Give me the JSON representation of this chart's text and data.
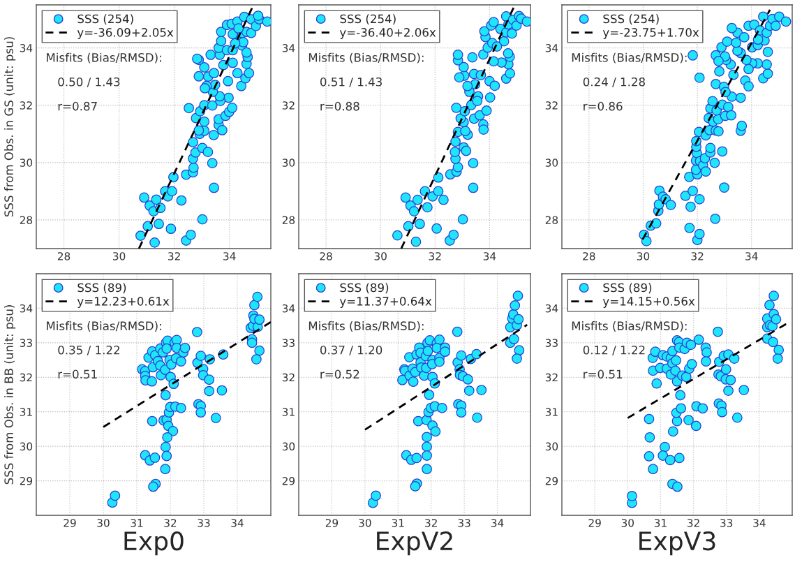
{
  "chart_data": [
    {
      "type": "scatter",
      "ylabel": "SSS from Obs. in GS (unit: psu)",
      "xlim": [
        27,
        35.5
      ],
      "ylim": [
        27,
        35.5
      ],
      "xticks": [
        28,
        30,
        32,
        34
      ],
      "yticks": [
        28,
        30,
        32,
        34
      ],
      "grid": true,
      "legend": "top left",
      "marker": "circle",
      "annotations": [
        "Misfits (Bias/RMSD):",
        "0.50 / 1.43",
        "r=0.87"
      ],
      "series": [
        {
          "name": "SSS (254)",
          "type": "scatter",
          "color": "#1ee6f8",
          "x": [
            30.78,
            31.29,
            31.04,
            31.44,
            31.88,
            30.91,
            31.11,
            31.25,
            31.35,
            31.5,
            31.67,
            31.77,
            31.92,
            31.97,
            32.26,
            32.43,
            32.6,
            33.02,
            33.44,
            33.38,
            32.43,
            32.68,
            32.7,
            32.68,
            32.77,
            32.68,
            33.02,
            33.22,
            33.43,
            32.92,
            33.09,
            32.89,
            33.09,
            32.79,
            32.94,
            32.53,
            33.09,
            33.38,
            33.61,
            33.74,
            33.61,
            33.86,
            33.99,
            34.1,
            33.97,
            33.67,
            33.65,
            33.4,
            33.48,
            33.17,
            33.11,
            32.89,
            33.09,
            33.23,
            33.44,
            32.89,
            32.83,
            33.32,
            33.95,
            34.43,
            34.58,
            34.71,
            34.62,
            34.66,
            34.29,
            34.12,
            33.78,
            33.65,
            33.61,
            33.7,
            33.91,
            34.12,
            34.46,
            34.62,
            34.29,
            33.7,
            33.91,
            34.12,
            34.46,
            34.62,
            34.79,
            34.08,
            34.29,
            34.54,
            34.79,
            34.96,
            35.08,
            35.04,
            35.37,
            34.33,
            34.5,
            34.21
          ],
          "values": [
            27.45,
            27.21,
            27.78,
            27.86,
            27.69,
            28.78,
            28.5,
            28.3,
            28.71,
            28.42,
            29.0,
            28.82,
            29.0,
            29.49,
            28.68,
            27.28,
            27.48,
            28.02,
            29.12,
            29.98,
            29.58,
            29.66,
            29.82,
            30.14,
            30.35,
            30.71,
            30.51,
            30.37,
            30.96,
            31.0,
            31.11,
            31.12,
            31.43,
            31.55,
            31.79,
            31.9,
            32.0,
            31.99,
            31.31,
            31.13,
            31.51,
            31.63,
            31.77,
            31.91,
            32.26,
            32.15,
            32.31,
            32.47,
            32.71,
            32.67,
            32.59,
            33.01,
            33.32,
            33.0,
            33.12,
            33.58,
            33.62,
            33.76,
            32.84,
            32.67,
            32.94,
            33.12,
            33.44,
            33.68,
            33.12,
            33.48,
            33.4,
            33.76,
            34.0,
            34.24,
            33.92,
            33.92,
            34.08,
            33.84,
            34.28,
            34.56,
            34.8,
            34.48,
            34.52,
            34.56,
            34.52,
            34.84,
            34.92,
            35.08,
            35.0,
            34.76,
            35.0,
            35.12,
            34.92,
            34.68,
            34.2,
            34.16
          ]
        },
        {
          "name": "y=-36.09+2.05x",
          "type": "line",
          "marker": "none",
          "color": "#000000",
          "line_style": "dashed",
          "x": [
            30.72,
            34.82
          ],
          "values": [
            27.0,
            35.39
          ]
        }
      ]
    },
    {
      "type": "scatter",
      "xlim": [
        27,
        35.5
      ],
      "ylim": [
        27,
        35.5
      ],
      "xticks": [
        28,
        30,
        32,
        34
      ],
      "yticks": [
        28,
        30,
        32,
        34
      ],
      "grid": true,
      "legend": "top left",
      "marker": "circle",
      "annotations": [
        "Misfits (Bias/RMSD):",
        "0.51 / 1.43",
        "r=0.88"
      ],
      "series": [
        {
          "name": "SSS (254)",
          "type": "scatter",
          "color": "#1ee6f8",
          "x": [
            30.62,
            31.3,
            31.02,
            31.44,
            32.06,
            30.92,
            31.1,
            31.23,
            31.36,
            31.72,
            31.63,
            31.91,
            32.12,
            32.12,
            32.31,
            32.54,
            32.68,
            33.02,
            33.4,
            33.4,
            32.56,
            32.79,
            32.84,
            32.75,
            32.73,
            32.75,
            33.05,
            33.14,
            33.2,
            32.84,
            33.11,
            33.05,
            32.94,
            33.09,
            32.78,
            33.33,
            33.43,
            33.64,
            33.77,
            33.78,
            33.89,
            34.02,
            33.58,
            33.55,
            33.47,
            33.26,
            33.19,
            33.07,
            32.89,
            33.05,
            32.84,
            32.84,
            33.37,
            33.43,
            33.68,
            34.0,
            34.19,
            34.61,
            34.75,
            34.69,
            34.74,
            34.44,
            34.15,
            33.77,
            33.93,
            34.1,
            34.53,
            34.68,
            33.85,
            33.81,
            34.06,
            34.15,
            34.4,
            34.61,
            34.82,
            34.69,
            34.61,
            34.86,
            34.99,
            35.08,
            35.16,
            35.37,
            34.27
          ],
          "values": [
            27.46,
            27.24,
            27.78,
            27.86,
            27.7,
            28.78,
            28.5,
            28.3,
            28.7,
            28.44,
            29.0,
            28.82,
            29.0,
            29.48,
            28.7,
            27.28,
            27.48,
            28.02,
            29.12,
            29.98,
            29.59,
            29.68,
            29.84,
            30.13,
            30.37,
            30.73,
            30.53,
            30.41,
            30.97,
            31.07,
            31.1,
            31.41,
            31.54,
            31.79,
            31.91,
            32.01,
            31.53,
            31.65,
            31.33,
            31.15,
            31.81,
            32.27,
            32.31,
            32.15,
            32.73,
            32.47,
            32.67,
            33.03,
            32.97,
            33.33,
            33.57,
            33.76,
            33.67,
            33.09,
            33.05,
            32.84,
            32.68,
            32.93,
            33.11,
            33.43,
            33.69,
            33.49,
            33.53,
            33.77,
            34.01,
            34.17,
            34.23,
            33.81,
            34.38,
            34.58,
            34.78,
            34.9,
            34.66,
            34.54,
            34.5,
            34.82,
            35.1,
            34.98,
            34.78,
            35.11,
            35.02,
            34.92,
            34.05
          ]
        },
        {
          "name": "y=-36.40+2.06x",
          "type": "line",
          "marker": "none",
          "color": "#000000",
          "line_style": "dashed",
          "x": [
            30.76,
            34.88
          ],
          "values": [
            27.0,
            35.4
          ]
        }
      ]
    },
    {
      "type": "scatter",
      "xlim": [
        27,
        35.5
      ],
      "ylim": [
        27,
        35.5
      ],
      "xticks": [
        28,
        30,
        32,
        34
      ],
      "yticks": [
        28,
        30,
        32,
        34
      ],
      "grid": true,
      "legend": "top left",
      "marker": "circle",
      "annotations": [
        "Misfits (Bias/RMSD):",
        "0.24 / 1.28",
        "r=0.86"
      ],
      "series": [
        {
          "name": "SSS (254)",
          "type": "scatter",
          "color": "#1ee6f8",
          "x": [
            30.03,
            30.12,
            30.28,
            30.48,
            30.56,
            30.58,
            30.6,
            30.73,
            30.83,
            31.02,
            31.56,
            31.7,
            31.75,
            31.71,
            31.83,
            32.08,
            32.0,
            32.08,
            32.66,
            32.99,
            32.0,
            31.95,
            31.95,
            31.98,
            31.96,
            31.96,
            32.1,
            32.21,
            32.31,
            32.28,
            32.48,
            32.48,
            32.64,
            32.92,
            32.06,
            32.31,
            32.45,
            32.68,
            32.78,
            32.42,
            32.58,
            32.77,
            32.48,
            32.56,
            32.71,
            32.92,
            33.03,
            33.14,
            33.25,
            33.27,
            33.6,
            33.6,
            33.64,
            32.68,
            32.98,
            33.04,
            33.33,
            33.77,
            33.89,
            34.43,
            34.6,
            34.56,
            34.23,
            34.02,
            33.89,
            33.81,
            33.6,
            33.48,
            33.23,
            33.06,
            33.02,
            32.68,
            32.78,
            32.81,
            32.89,
            33.1,
            31.83,
            32.08,
            33.43,
            33.48,
            33.27,
            33.73,
            34.02,
            34.23,
            34.48,
            34.6,
            33.89,
            34.1,
            34.31,
            34.56,
            34.68,
            34.43,
            34.77,
            34.89,
            35.02,
            35.27,
            34.24
          ],
          "values": [
            27.48,
            27.26,
            27.8,
            27.88,
            28.32,
            28.54,
            29.02,
            28.81,
            28.72,
            28.52,
            28.84,
            29.5,
            28.46,
            27.72,
            29.01,
            28.72,
            27.3,
            27.51,
            28.04,
            29.13,
            29.59,
            29.75,
            30.07,
            30.33,
            30.55,
            30.75,
            30.05,
            29.9,
            29.69,
            30.15,
            30.35,
            30.51,
            29.99,
            30.39,
            31.07,
            30.95,
            31.13,
            31.12,
            31.09,
            31.55,
            31.43,
            31.51,
            31.89,
            32.14,
            31.82,
            32.02,
            31.63,
            31.94,
            31.65,
            32.3,
            32.26,
            31.11,
            31.28,
            32.74,
            32.64,
            32.46,
            33.06,
            32.86,
            32.66,
            32.94,
            33.1,
            33.42,
            33.46,
            33.46,
            33.26,
            33.58,
            33.82,
            33.9,
            33.42,
            33.58,
            33.7,
            33.74,
            33.54,
            33.18,
            34.02,
            34.22,
            33.74,
            32.96,
            34.18,
            34.53,
            34.69,
            34.37,
            34.02,
            34.1,
            34.26,
            33.86,
            34.77,
            34.81,
            34.61,
            34.53,
            34.77,
            35.09,
            35.01,
            34.77,
            35.09,
            34.92,
            34.29
          ]
        },
        {
          "name": "y=-23.75+1.70x",
          "type": "line",
          "marker": "none",
          "color": "#000000",
          "line_style": "dashed",
          "x": [
            29.98,
            34.68
          ],
          "values": [
            27.32,
            35.33
          ]
        }
      ]
    },
    {
      "type": "scatter",
      "xlabel": "Exp0",
      "ylabel": "SSS from Obs. in BB (unit: psu)",
      "xlim": [
        28,
        35
      ],
      "ylim": [
        28,
        35
      ],
      "xticks": [
        29,
        30,
        31,
        32,
        33,
        34
      ],
      "yticks": [
        29,
        30,
        31,
        32,
        33,
        34
      ],
      "grid": true,
      "legend": "top left",
      "marker": "circle",
      "annotations": [
        "Misfits (Bias/RMSD):",
        "0.35 / 1.22",
        "r=0.51"
      ],
      "series": [
        {
          "name": "SSS (89)",
          "type": "scatter",
          "color": "#1ee6f8",
          "x": [
            30.27,
            30.35,
            31.16,
            31.25,
            31.25,
            31.26,
            31.45,
            31.48,
            31.35,
            31.46,
            31.55,
            31.63,
            31.7,
            31.7,
            31.72,
            31.78,
            31.85,
            31.87,
            31.92,
            31.89,
            31.98,
            32.01,
            32.03,
            32.1,
            32.13,
            32.19,
            32.19,
            32.17,
            32.32,
            32.39,
            32.44,
            31.46,
            31.86,
            31.8,
            31.89,
            31.96,
            32.0,
            31.94,
            32.08,
            31.91,
            31.86,
            31.89,
            31.85,
            31.25,
            31.39,
            31.54,
            31.56,
            31.49,
            32.15,
            32.32,
            32.8,
            32.81,
            32.91,
            32.98,
            32.98,
            33.16,
            33.16,
            33.18,
            33.58,
            33.54,
            32.84,
            32.91,
            32.91,
            33.36,
            34.4,
            34.47,
            34.44,
            34.44,
            34.48,
            34.51,
            34.51,
            34.6,
            34.61,
            34.66,
            34.66,
            34.57
          ],
          "values": [
            28.37,
            28.57,
            32.23,
            32.18,
            32.04,
            31.91,
            31.88,
            32.29,
            32.57,
            32.75,
            32.64,
            32.47,
            32.83,
            32.34,
            32.06,
            32.72,
            32.22,
            33.0,
            33.06,
            32.83,
            32.5,
            32.01,
            32.37,
            31.81,
            33.0,
            33.08,
            32.85,
            32.55,
            32.46,
            32.72,
            32.85,
            30.73,
            31.48,
            30.75,
            30.77,
            30.98,
            31.14,
            30.59,
            30.44,
            30.26,
            29.98,
            29.72,
            29.34,
            29.74,
            29.59,
            29.67,
            28.91,
            28.83,
            31.15,
            31.11,
            33.31,
            32.42,
            32.62,
            32.24,
            32.06,
            31.93,
            31.6,
            32.52,
            32.66,
            31.62,
            31.22,
            31.17,
            30.98,
            30.82,
            33.43,
            33.49,
            33.1,
            33.0,
            33.79,
            33.69,
            34.09,
            34.33,
            33.46,
            33.67,
            32.77,
            32.52
          ]
        },
        {
          "name": "y=12.23+0.61x",
          "type": "line",
          "marker": "none",
          "color": "#000000",
          "line_style": "dashed",
          "x": [
            30.0,
            35.0
          ],
          "values": [
            30.56,
            33.6
          ]
        }
      ]
    },
    {
      "type": "scatter",
      "xlabel": "ExpV2",
      "xlim": [
        28,
        35
      ],
      "ylim": [
        28,
        35
      ],
      "xticks": [
        29,
        30,
        31,
        32,
        33,
        34
      ],
      "yticks": [
        29,
        30,
        31,
        32,
        33,
        34
      ],
      "grid": true,
      "legend": "top left",
      "marker": "circle",
      "annotations": [
        "Misfits (Bias/RMSD):",
        "0.37 / 1.20",
        "r=0.52"
      ],
      "series": [
        {
          "name": "SSS (89)",
          "type": "scatter",
          "color": "#1ee6f8",
          "x": [
            30.24,
            30.33,
            31.13,
            31.19,
            31.21,
            31.34,
            31.35,
            31.44,
            31.52,
            31.46,
            31.56,
            31.64,
            31.68,
            31.7,
            31.68,
            31.79,
            31.84,
            31.85,
            31.89,
            31.96,
            31.9,
            32.04,
            32.03,
            32.04,
            32.11,
            32.17,
            32.25,
            32.17,
            32.25,
            32.25,
            32.42,
            32.42,
            31.61,
            31.94,
            31.86,
            31.92,
            31.99,
            32.11,
            32.04,
            32.13,
            31.87,
            31.87,
            31.87,
            31.87,
            31.25,
            31.4,
            31.56,
            31.57,
            31.52,
            32.33,
            32.79,
            32.8,
            32.91,
            32.86,
            32.87,
            32.96,
            33.11,
            33.15,
            33.2,
            33.37,
            33.52,
            32.82,
            32.91,
            32.91,
            33.39,
            34.39,
            34.39,
            34.5,
            34.45,
            34.48,
            34.59,
            34.53,
            34.62,
            34.64,
            34.66,
            34.59
          ],
          "values": [
            28.36,
            28.57,
            31.92,
            32.23,
            32.19,
            32.58,
            32.05,
            32.25,
            32.15,
            31.87,
            32.66,
            32.86,
            32.43,
            32.28,
            32.71,
            32.05,
            32.61,
            32.27,
            33.0,
            33.07,
            32.76,
            32.5,
            32.38,
            32.01,
            31.82,
            32.98,
            33.09,
            32.85,
            32.56,
            32.45,
            32.86,
            32.74,
            30.73,
            31.49,
            30.76,
            30.99,
            31.11,
            31.16,
            30.6,
            30.43,
            30.27,
            29.99,
            29.73,
            29.34,
            29.74,
            29.61,
            29.66,
            28.92,
            28.84,
            31.11,
            33.32,
            32.43,
            32.63,
            32.23,
            32.07,
            32.03,
            31.94,
            31.61,
            32.53,
            32.67,
            31.63,
            31.22,
            31.18,
            30.98,
            30.83,
            33.45,
            33.0,
            33.11,
            33.7,
            33.82,
            33.51,
            34.08,
            34.36,
            33.68,
            32.78,
            32.54
          ]
        },
        {
          "name": "y=11.37+0.64x",
          "type": "line",
          "marker": "none",
          "color": "#000000",
          "line_style": "dashed",
          "x": [
            30.0,
            34.9
          ],
          "values": [
            30.48,
            33.52
          ]
        }
      ]
    },
    {
      "type": "scatter",
      "xlabel": "ExpV3",
      "xlim": [
        28,
        35
      ],
      "ylim": [
        28,
        35
      ],
      "xticks": [
        29,
        30,
        31,
        32,
        33,
        34
      ],
      "yticks": [
        29,
        30,
        31,
        32,
        33,
        34
      ],
      "grid": true,
      "legend": "top left",
      "marker": "circle",
      "annotations": [
        "Misfits (Bias/RMSD):",
        "0.12 / 1.22",
        "r=0.51"
      ],
      "series": [
        {
          "name": "SSS (89)",
          "type": "scatter",
          "color": "#1ee6f8",
          "x": [
            30.13,
            30.13,
            30.65,
            30.67,
            30.65,
            30.77,
            31.13,
            31.07,
            31.29,
            31.57,
            31.36,
            31.51,
            31.38,
            31.5,
            31.48,
            31.62,
            31.6,
            31.5,
            31.85,
            32.08,
            32.09,
            32.28,
            30.88,
            30.77,
            30.76,
            30.84,
            30.99,
            31.07,
            31.19,
            31.19,
            31.31,
            31.31,
            31.36,
            31.36,
            31.45,
            31.47,
            31.5,
            31.56,
            31.57,
            31.66,
            31.78,
            31.73,
            31.8,
            31.87,
            31.92,
            31.95,
            32.16,
            32.37,
            32.4,
            32.38,
            32.74,
            32.78,
            32.76,
            32.83,
            32.92,
            32.99,
            32.98,
            33.06,
            33.13,
            33.06,
            33.24,
            33.53,
            32.77,
            32.85,
            32.87,
            33.33,
            34.24,
            34.24,
            34.24,
            34.31,
            34.33,
            34.4,
            34.44,
            34.44,
            34.42,
            34.51,
            34.59,
            34.56
          ],
          "values": [
            28.36,
            28.56,
            30.79,
            30.26,
            29.71,
            29.34,
            29.98,
            29.73,
            29.6,
            29.66,
            28.91,
            28.83,
            30.43,
            30.73,
            30.97,
            31.1,
            31.48,
            31.88,
            30.76,
            30.59,
            31.16,
            31.1,
            31.82,
            32.19,
            32.56,
            32.74,
            32.27,
            32.64,
            32.6,
            32.25,
            32.08,
            32.56,
            32.76,
            32.4,
            32.19,
            32.49,
            33.07,
            33.02,
            32.86,
            32.05,
            32.01,
            32.82,
            33.0,
            32.25,
            32.94,
            32.38,
            33.09,
            32.86,
            32.72,
            32.46,
            33.32,
            32.45,
            32.08,
            32.03,
            32.62,
            32.23,
            31.94,
            32.66,
            31.92,
            31.61,
            32.54,
            31.63,
            31.24,
            31.18,
            30.99,
            30.83,
            33.45,
            33.12,
            33.7,
            34.09,
            33.51,
            33.48,
            33.83,
            34.36,
            33.02,
            33.68,
            32.79,
            32.54
          ]
        },
        {
          "name": "y=14.15+0.56x",
          "type": "line",
          "marker": "none",
          "color": "#000000",
          "line_style": "dashed",
          "x": [
            30.0,
            34.95
          ],
          "values": [
            30.82,
            33.62
          ]
        }
      ]
    }
  ]
}
